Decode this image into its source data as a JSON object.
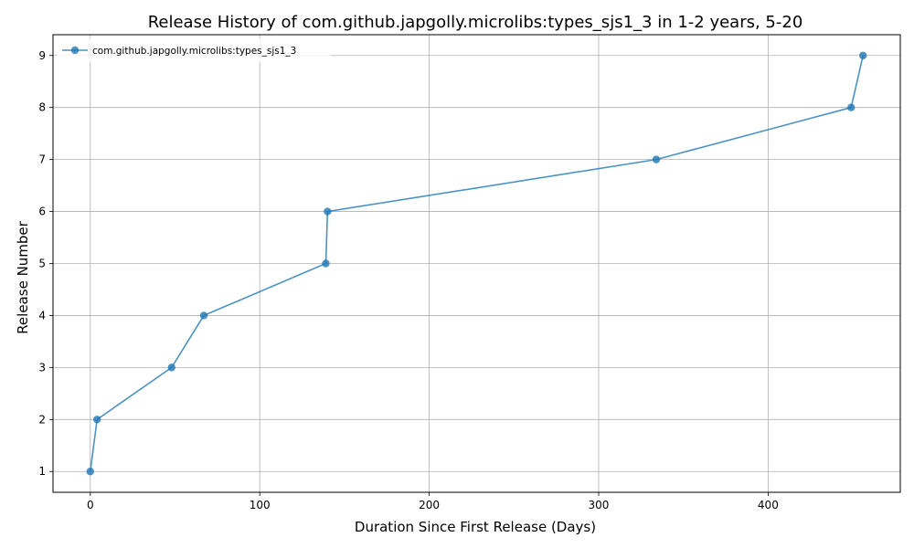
{
  "chart_data": {
    "type": "line",
    "title": "Release History of com.github.japgolly.microlibs:types_sjs1_3 in 1-2 years, 5-20",
    "xlabel": "Duration Since First Release (Days)",
    "ylabel": "Release Number",
    "xlim": [
      -22,
      478
    ],
    "ylim": [
      0.6,
      9.4
    ],
    "xticks": [
      0,
      100,
      200,
      300,
      400
    ],
    "yticks": [
      1,
      2,
      3,
      4,
      5,
      6,
      7,
      8,
      9
    ],
    "grid": true,
    "legend_position": "top-left",
    "series": [
      {
        "name": "com.github.japgolly.microlibs:types_sjs1_3",
        "color": "#1f77b4",
        "marker": "circle",
        "x": [
          0,
          4,
          48,
          67,
          139,
          140,
          334,
          449,
          456
        ],
        "y": [
          1,
          2,
          3,
          4,
          5,
          6,
          7,
          8,
          9
        ]
      }
    ]
  }
}
